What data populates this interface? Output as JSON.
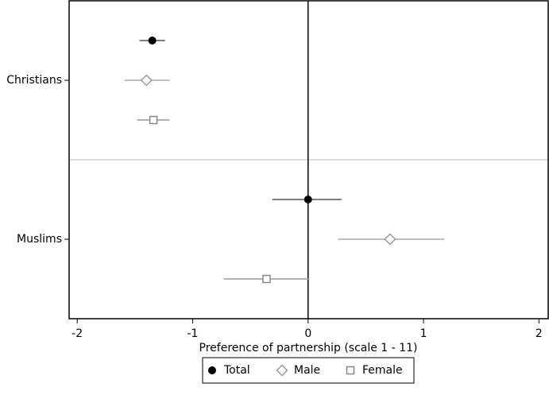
{
  "chart_data": {
    "type": "coefplot",
    "x_label": "Preference of partnership (scale 1 - 11)",
    "categories": [
      "Christians",
      "Muslims"
    ],
    "series": [
      {
        "name": "Total",
        "color": "#000000",
        "bar_color": "#555555",
        "marker": "circle",
        "values": [
          -1.35,
          0.0
        ],
        "lower": [
          -1.46,
          -0.31
        ],
        "upper": [
          -1.24,
          0.29
        ]
      },
      {
        "name": "Male",
        "color": "#999999",
        "bar_color": "#aaaaaa",
        "marker": "diamond",
        "values": [
          -1.4,
          0.71
        ],
        "lower": [
          -1.59,
          0.26
        ],
        "upper": [
          -1.2,
          1.18
        ]
      },
      {
        "name": "Female",
        "color": "#888888",
        "bar_color": "#999999",
        "marker": "square",
        "values": [
          -1.34,
          -0.36
        ],
        "lower": [
          -1.48,
          -0.73
        ],
        "upper": [
          -1.2,
          0.01
        ]
      }
    ],
    "xlim": [
      -2.07,
      2.08
    ],
    "xticks": [
      -2,
      -1,
      0,
      1,
      2
    ],
    "xline": 0,
    "legend": "bottom"
  }
}
